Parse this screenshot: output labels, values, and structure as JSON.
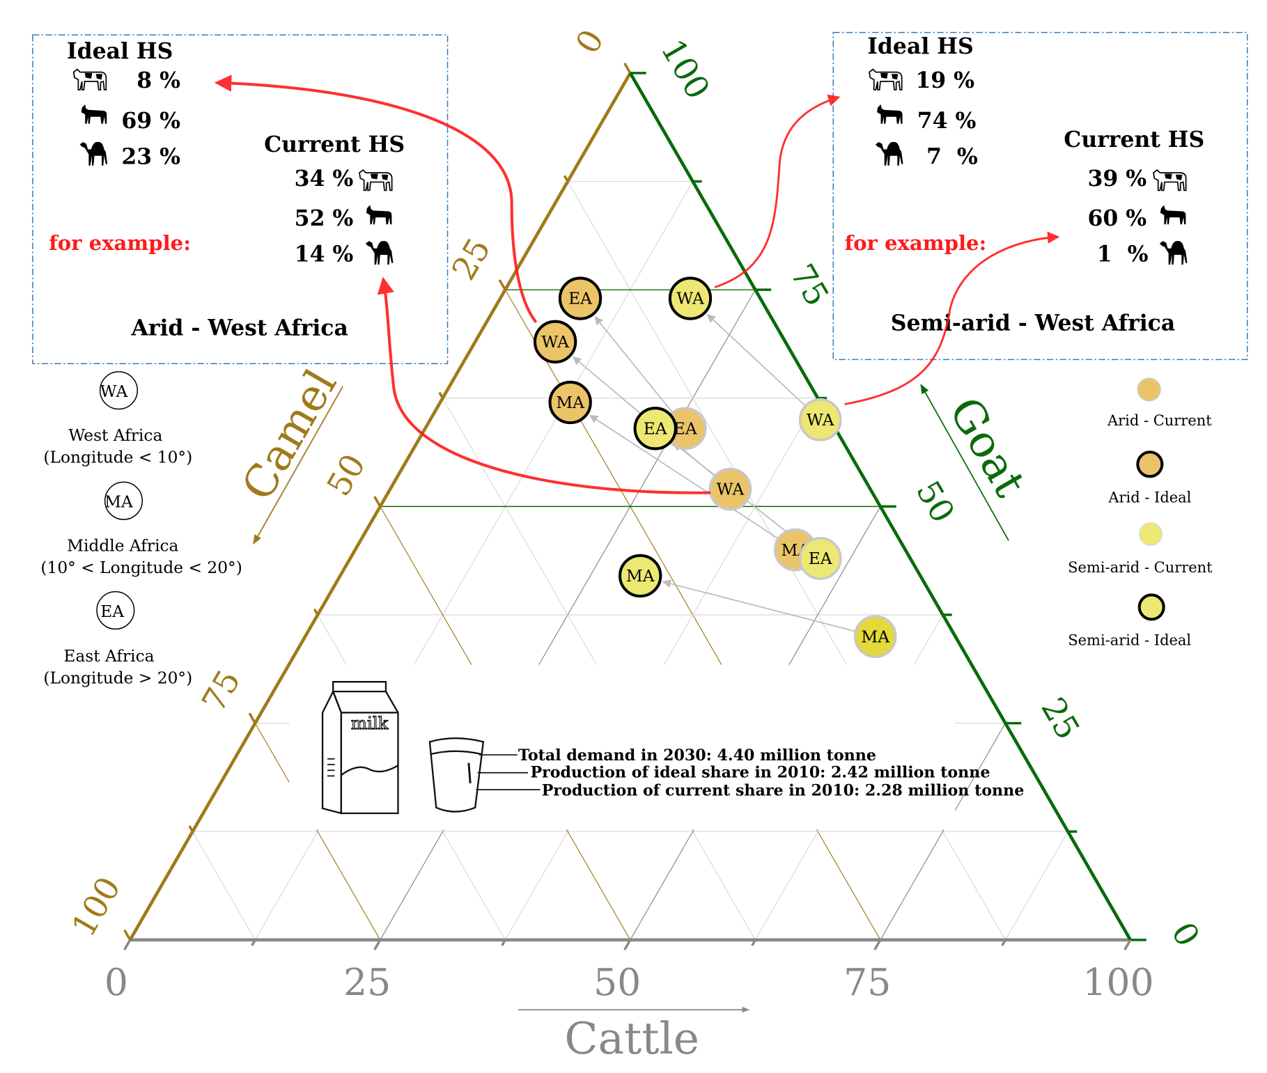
{
  "colors": {
    "camel_axis": "#A07A1A",
    "goat_axis": "#0A6A0A",
    "cattle_axis": "#888888",
    "arid": "#EBC46A",
    "semi_arid": "#EDE873",
    "highlight_arrow": "#FF1A1A",
    "box_border": "#3A7AB0"
  },
  "chart_data": {
    "type": "ternary-scatter",
    "axes": {
      "cattle": {
        "label": "Cattle",
        "ticks": [
          "0",
          "25",
          "50",
          "75",
          "100"
        ],
        "range": [
          0,
          100
        ],
        "direction": "left-to-right along bottom"
      },
      "goat": {
        "label": "Goat",
        "ticks": [
          "0",
          "25",
          "50",
          "75",
          "100"
        ],
        "range": [
          0,
          100
        ],
        "direction": "bottom-right to top along right side"
      },
      "camel": {
        "label": "Camel",
        "ticks": [
          "0",
          "25",
          "50",
          "75",
          "100"
        ],
        "range": [
          0,
          100
        ],
        "direction": "top to bottom-left along left side"
      }
    },
    "grid": true,
    "series": [
      {
        "name": "Arid - Current",
        "style": "fill-gray-border",
        "points": [
          {
            "label": "WA",
            "cattle": 34,
            "goat": 52,
            "camel": 14
          },
          {
            "label": "EA",
            "cattle": 26,
            "goat": 59,
            "camel": 15
          },
          {
            "label": "MA",
            "cattle": 44,
            "goat": 45,
            "camel": 11
          }
        ]
      },
      {
        "name": "Arid - Ideal",
        "style": "fill-black-border",
        "points": [
          {
            "label": "WA",
            "cattle": 8,
            "goat": 69,
            "camel": 23
          },
          {
            "label": "EA",
            "cattle": 8,
            "goat": 74,
            "camel": 18
          },
          {
            "label": "MA",
            "cattle": 13,
            "goat": 62,
            "camel": 25
          }
        ]
      },
      {
        "name": "Semi-arid - Current",
        "style": "fill-gray-border",
        "points": [
          {
            "label": "WA",
            "cattle": 39,
            "goat": 60,
            "camel": 1
          },
          {
            "label": "EA",
            "cattle": 47,
            "goat": 44,
            "camel": 9
          },
          {
            "label": "MA",
            "cattle": 57,
            "goat": 35,
            "camel": 8
          }
        ]
      },
      {
        "name": "Semi-arid - Ideal",
        "style": "fill-black-border",
        "points": [
          {
            "label": "WA",
            "cattle": 19,
            "goat": 74,
            "camel": 7
          },
          {
            "label": "EA",
            "cattle": 23,
            "goat": 59,
            "camel": 18
          },
          {
            "label": "MA",
            "cattle": 30,
            "goat": 42,
            "camel": 28
          }
        ]
      }
    ]
  },
  "boxes": [
    {
      "ideal_title": "Ideal HS",
      "ideal": [
        "8 %",
        "69 %",
        "23 %"
      ],
      "current_title": "Current HS",
      "current": [
        "34 %",
        "52 %",
        "14 %"
      ],
      "example": "for example:",
      "caption": "Arid - West Africa"
    },
    {
      "ideal_title": "Ideal HS",
      "ideal": [
        "19 %",
        "74 %",
        "7  %"
      ],
      "current_title": "Current HS",
      "current": [
        "39 %",
        "60 %",
        "1  %"
      ],
      "example": "for example:",
      "caption": "Semi-arid - West Africa"
    }
  ],
  "region_legend": [
    {
      "code": "WA",
      "name": "West Africa",
      "range": "(Longitude < 10°)"
    },
    {
      "code": "MA",
      "name": "Middle Africa",
      "range": "(10° < Longitude < 20°)"
    },
    {
      "code": "EA",
      "name": "East Africa",
      "range": "(Longitude > 20°)"
    }
  ],
  "series_legend": [
    "Arid - Current",
    "Arid - Ideal",
    "Semi-arid - Current",
    "Semi-arid - Ideal"
  ],
  "milk": {
    "carton_label": "milk",
    "lines": [
      "Total demand in 2030: 4.40 million tonne",
      "Production of ideal share in 2010: 2.42 million tonne",
      "Production of current share in 2010: 2.28 million tonne"
    ]
  },
  "icons": [
    "cow-icon",
    "goat-icon",
    "camel-icon"
  ]
}
